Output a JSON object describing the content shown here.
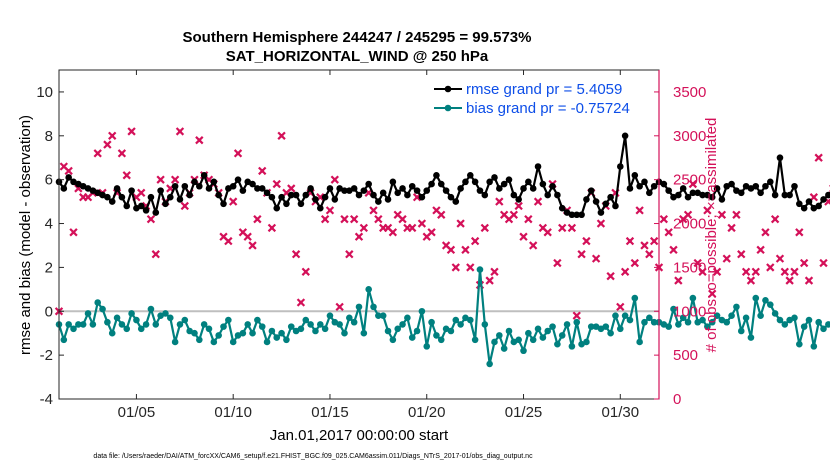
{
  "chart_data": {
    "type": "line",
    "title_line1": "Southern Hemisphere 244247 / 245295 = 99.573%",
    "title_line2": "SAT_HORIZONTAL_WIND @ 250 hPa",
    "xlabel": "Jan.01,2017 00:00:00 start",
    "ylabel_left": "rmse and bias (model - observation)",
    "ylabel_right": "# of obs: o=possible; ×=assimilated",
    "footnote": "data file: /Users/raeder/DAI/ATM_forcXX/CAM6_setup/f.e21.FHIST_BGC.f09_025.CAM6assim.011/Diags_NTrS_2017-01/obs_diag_output.nc",
    "xlim": [
      1.0,
      32.0
    ],
    "ylim_left": [
      -4,
      11
    ],
    "ylim_right": [
      0,
      3750
    ],
    "x_ticks": [
      {
        "value": 5,
        "label": "01/05"
      },
      {
        "value": 10,
        "label": "01/10"
      },
      {
        "value": 15,
        "label": "01/15"
      },
      {
        "value": 20,
        "label": "01/20"
      },
      {
        "value": 25,
        "label": "01/25"
      },
      {
        "value": 30,
        "label": "01/30"
      }
    ],
    "y_ticks_left": [
      -4,
      -2,
      0,
      2,
      4,
      6,
      8,
      10
    ],
    "y_ticks_right": [
      0,
      500,
      1000,
      1500,
      2000,
      2500,
      3000,
      3500
    ],
    "colors": {
      "rmse": "#000000",
      "bias": "#00807f",
      "obs": "#d41159",
      "zero_line": "#bfbfbf",
      "legend_text": "#0d4ee8"
    },
    "legend": {
      "position": "top-right",
      "rmse_label": "rmse grand pr = 5.4059",
      "bias_label": "bias grand pr = -0.75724"
    },
    "x_step": 0.25,
    "series": [
      {
        "name": "rmse",
        "values": [
          5.9,
          5.6,
          6.1,
          5.9,
          5.8,
          5.7,
          5.6,
          5.5,
          5.4,
          5.3,
          5.2,
          5.0,
          5.6,
          5.2,
          4.8,
          5.5,
          4.7,
          4.8,
          4.6,
          5.2,
          4.5,
          5.5,
          4.9,
          5.2,
          5.7,
          5.1,
          5.7,
          5.3,
          5.9,
          5.7,
          6.2,
          5.6,
          5.9,
          5.3,
          4.9,
          5.6,
          5.7,
          6.0,
          5.5,
          5.9,
          5.8,
          5.6,
          5.6,
          5.4,
          5.2,
          4.7,
          5.2,
          4.9,
          5.3,
          5.3,
          4.9,
          5.3,
          5.6,
          5.1,
          4.7,
          5.2,
          5.6,
          5.1,
          5.6,
          5.5,
          5.5,
          5.6,
          5.3,
          5.5,
          5.8,
          5.3,
          5.0,
          5.4,
          5.1,
          5.9,
          5.4,
          5.6,
          5.3,
          5.7,
          5.5,
          5.2,
          5.5,
          5.8,
          6.2,
          5.8,
          5.5,
          5.2,
          5.0,
          5.6,
          5.9,
          6.2,
          5.9,
          5.5,
          5.3,
          5.9,
          6.1,
          5.6,
          5.8,
          6.0,
          5.3,
          5.1,
          5.6,
          5.9,
          5.6,
          6.6,
          5.8,
          5.3,
          5.7,
          5.3,
          4.7,
          4.5,
          4.4,
          4.4,
          4.4,
          5.1,
          5.5,
          5.0,
          4.5,
          4.9,
          5.2,
          4.8,
          6.6,
          8.0,
          5.6,
          6.2,
          5.7,
          5.9,
          5.4,
          5.7,
          5.9,
          5.8,
          5.5,
          5.2,
          5.3,
          5.6,
          5.2,
          5.4,
          5.4,
          5.3,
          5.3,
          5.2,
          5.6,
          5.1,
          5.7,
          5.8,
          5.5,
          5.4,
          5.7,
          5.6,
          5.7,
          5.4,
          5.7,
          5.9,
          5.3,
          7.0,
          5.3,
          5.3,
          5.7,
          4.9,
          4.7,
          5.0,
          4.7,
          4.8,
          5.1,
          5.3,
          5.1,
          5.5,
          5.3
        ]
      },
      {
        "name": "bias",
        "values": [
          -0.6,
          -1.3,
          -0.6,
          -0.8,
          -0.6,
          -0.6,
          -0.1,
          -0.6,
          0.4,
          0.1,
          -0.5,
          -1.0,
          -0.3,
          -0.6,
          -0.8,
          -0.1,
          -0.4,
          -0.8,
          -0.6,
          0.1,
          -0.6,
          -0.2,
          -0.1,
          -0.3,
          -1.4,
          -0.6,
          -0.4,
          -0.9,
          -1.0,
          -1.3,
          -0.6,
          -0.8,
          -1.4,
          -1.1,
          -0.7,
          -0.4,
          -1.4,
          -1.1,
          -1.0,
          -0.6,
          -1.0,
          -0.4,
          -0.7,
          -1.4,
          -0.9,
          -1.2,
          -1.0,
          -1.3,
          -0.7,
          -0.9,
          -0.8,
          -0.4,
          -0.6,
          -0.9,
          -0.6,
          -0.8,
          -0.2,
          -0.5,
          -0.6,
          -1.0,
          -0.3,
          -0.5,
          0.2,
          -1.0,
          1.0,
          0.2,
          -0.2,
          -0.2,
          -0.9,
          -1.3,
          -0.8,
          -0.6,
          -0.3,
          -1.2,
          -0.9,
          0.0,
          -1.6,
          -0.5,
          -1.1,
          -1.3,
          -0.8,
          -0.9,
          -0.4,
          -0.6,
          -0.3,
          -0.4,
          -1.3,
          1.9,
          -0.6,
          -2.4,
          -1.4,
          -1.1,
          -1.7,
          -0.9,
          -1.4,
          -1.3,
          -1.8,
          -1.0,
          -1.3,
          -0.8,
          -1.2,
          -0.9,
          -0.7,
          -1.5,
          -1.1,
          -0.6,
          -1.6,
          -0.5,
          -1.5,
          -1.4,
          -0.7,
          -0.7,
          -0.8,
          -0.7,
          -1.0,
          -0.2,
          -0.8,
          -0.2,
          -0.4,
          0.6,
          -1.4,
          -0.5,
          -0.3,
          -0.5,
          -0.5,
          -0.6,
          -0.7,
          0.1,
          -0.6,
          -0.3,
          -0.5,
          0.6,
          -0.5,
          -0.4,
          -0.7,
          -0.5,
          -0.2,
          -0.4,
          -0.5,
          -0.2,
          0.2,
          -0.9,
          -0.3,
          -1.2,
          0.6,
          -0.2,
          0.5,
          0.3,
          -0.1,
          -0.4,
          -0.6,
          -0.4,
          -0.3,
          -1.5,
          -0.7,
          -0.4,
          -1.6,
          -0.5,
          -0.8,
          -0.6,
          -0.6,
          -0.2,
          0.2,
          -0.2
        ]
      },
      {
        "name": "obs",
        "values": [
          1000,
          2650,
          2600,
          1900,
          2400,
          2300,
          2300,
          2350,
          2800,
          2350,
          2900,
          3000,
          2350,
          2800,
          2550,
          3050,
          2300,
          2350,
          2200,
          2050,
          1650,
          2500,
          2250,
          2400,
          2500,
          3050,
          2200,
          2350,
          2500,
          2950,
          2550,
          2500,
          2450,
          2350,
          1850,
          1800,
          2250,
          2800,
          1900,
          1850,
          1750,
          2050,
          2600,
          2350,
          1950,
          2450,
          3000,
          2350,
          2400,
          1650,
          1100,
          1450,
          2350,
          2250,
          2300,
          2050,
          2150,
          2500,
          1050,
          2050,
          1650,
          2050,
          1850,
          1950,
          2350,
          2150,
          2050,
          1950,
          1950,
          1900,
          2100,
          2050,
          1950,
          1950,
          2300,
          2000,
          1850,
          1900,
          2150,
          2100,
          1750,
          1700,
          1500,
          2000,
          1700,
          1500,
          1800,
          1300,
          1950,
          1350,
          1450,
          2250,
          2100,
          2050,
          2100,
          2200,
          1850,
          2050,
          1750,
          2250,
          1950,
          1900,
          2450,
          1550,
          1950,
          2150,
          1950,
          950,
          1650,
          1800,
          2350,
          1600,
          2000,
          2200,
          1400,
          2350,
          1050,
          1450,
          1800,
          1550,
          2150,
          1750,
          1650,
          1800,
          1500,
          2050,
          1900,
          1700,
          1350,
          2050,
          2100,
          2450,
          1550,
          1450,
          2150,
          1200,
          1450,
          2100,
          1600,
          1950,
          2100,
          1650,
          1450,
          1350,
          1450,
          1700,
          1900,
          1500,
          2050,
          1600,
          1450,
          1350,
          1450,
          1900,
          1550,
          1350,
          2300,
          2750,
          1550,
          2250,
          2400,
          2250,
          1150,
          1100,
          0
        ]
      }
    ]
  }
}
